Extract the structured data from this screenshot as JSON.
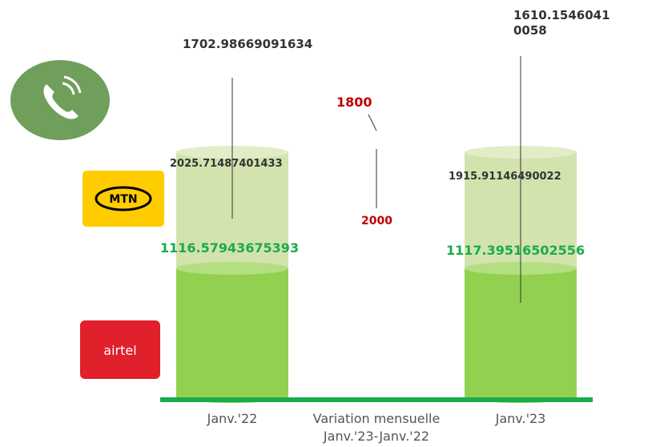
{
  "columns": [
    {
      "label": "Janv.'22",
      "top_label": "1702.98669091634",
      "mtn_label": "2025.71487401433",
      "airtel_label": "1116.57943675393"
    },
    {
      "label": "Variation mensuelle Janv.'23-Janv.'22",
      "top_label": "1800",
      "bottom_label": "2000"
    },
    {
      "label": "Janv.'23",
      "top_label": "1610.15460410058",
      "mtn_label": "1915.91146490022",
      "airtel_label": "1117.39516502556"
    }
  ],
  "logos": {
    "mtn": "MTN",
    "airtel": "airtel"
  }
}
